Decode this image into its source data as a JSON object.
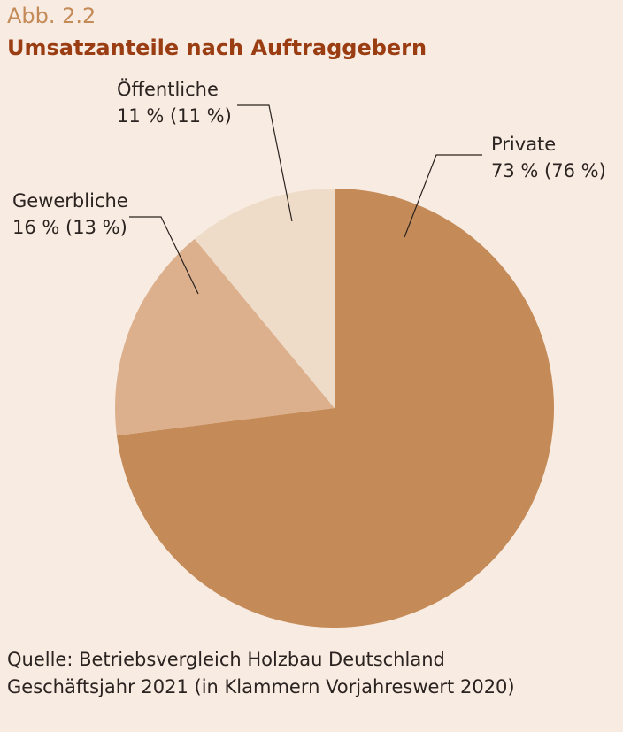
{
  "figure": {
    "number": "Abb. 2.2",
    "title": "Umsatzanteile nach Auftraggebern"
  },
  "chart_data": {
    "type": "pie",
    "title": "Umsatzanteile nach Auftraggebern",
    "slices": [
      {
        "name": "Private",
        "value": 73,
        "previous": 76,
        "label": "73 % (76 %)",
        "color": "#c48a57"
      },
      {
        "name": "Gewerbliche",
        "value": 16,
        "previous": 13,
        "label": "16 % (13 %)",
        "color": "#dcb08c"
      },
      {
        "name": "Öffentliche",
        "value": 11,
        "previous": 11,
        "label": "11 % (11 %)",
        "color": "#eedcc8"
      }
    ],
    "unit": "%"
  },
  "source": {
    "line1": "Quelle: Betriebsvergleich Holzbau Deutschland",
    "line2": "Geschäftsjahr 2021 (in Klammern Vorjahreswert 2020)"
  }
}
